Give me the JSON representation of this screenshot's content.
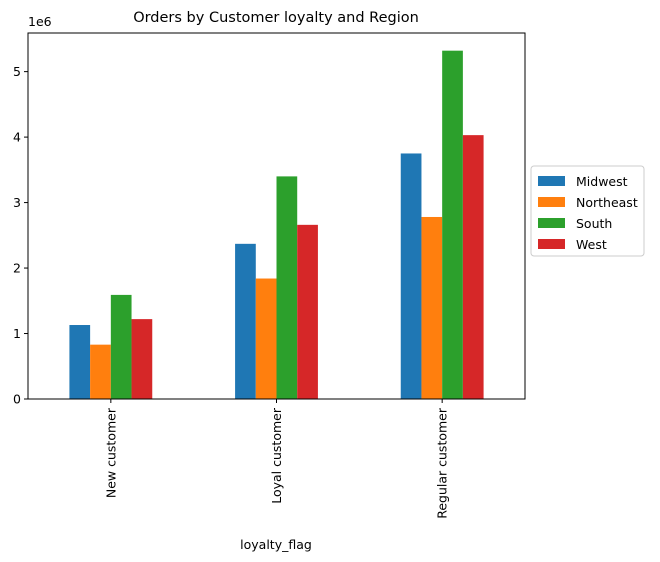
{
  "chart_data": {
    "type": "bar",
    "title": "Orders by Customer loyalty and Region",
    "xlabel": "loyalty_flag",
    "ylabel": "",
    "y_offset_label": "1e6",
    "categories": [
      "New customer",
      "Loyal customer",
      "Regular customer"
    ],
    "series": [
      {
        "name": "Midwest",
        "color": "#1f77b4",
        "values": [
          1.13,
          2.37,
          3.75
        ]
      },
      {
        "name": "Northeast",
        "color": "#ff7f0e",
        "values": [
          0.83,
          1.84,
          2.78
        ]
      },
      {
        "name": "South",
        "color": "#2ca02c",
        "values": [
          1.59,
          3.4,
          5.32
        ]
      },
      {
        "name": "West",
        "color": "#d62728",
        "values": [
          1.22,
          2.66,
          4.03
        ]
      }
    ],
    "ylim": [
      0,
      5.59
    ],
    "yticks": [
      0,
      1,
      2,
      3,
      4,
      5
    ],
    "grid": false,
    "legend_position": "right"
  }
}
